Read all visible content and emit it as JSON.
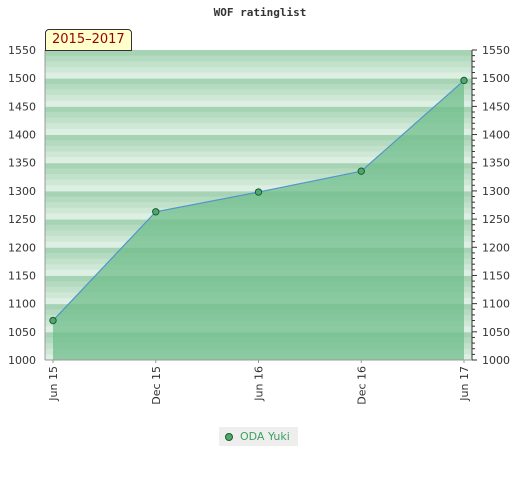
{
  "chart_data": {
    "type": "area",
    "title": "WOF ratinglist",
    "period_label": "2015–2017",
    "x": [
      "Jun 15",
      "Dec 15",
      "Jun 16",
      "Dec 16",
      "Jun 17"
    ],
    "y_ticks": [
      1000,
      1050,
      1100,
      1150,
      1200,
      1250,
      1300,
      1350,
      1400,
      1450,
      1500,
      1550
    ],
    "ylim": [
      1000,
      1550
    ],
    "series": [
      {
        "name": "ODA Yuki",
        "values": [
          1070,
          1263,
          1298,
          1335,
          1496
        ]
      }
    ],
    "grid": true,
    "legend": "bottom-center",
    "colors": {
      "line": "#4f95cc",
      "fill": "#6dbd89",
      "marker": "#4daa6a",
      "band_dark": "#a6d3b3",
      "band_light": "#dcefe2"
    }
  }
}
